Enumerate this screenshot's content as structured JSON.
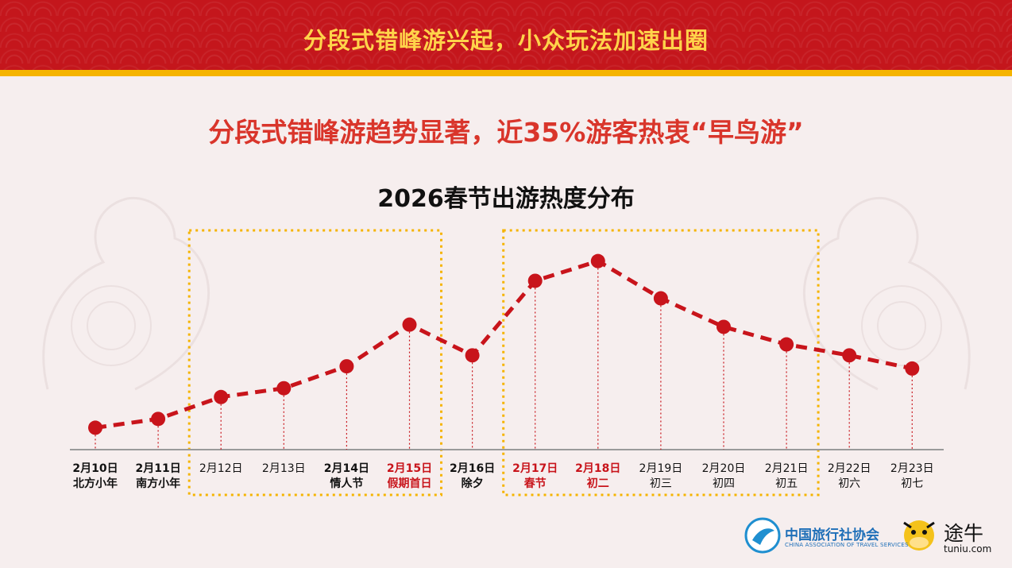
{
  "header": {
    "title": "分段式错峰游兴起，小众玩法加速出圈"
  },
  "subtitle": "分段式错峰游趋势显著，近35%游客热衷“早鸟游”",
  "chart_data": {
    "type": "line",
    "title": "2026春节出游热度分布",
    "categories": [
      "2月10日",
      "2月11日",
      "2月12日",
      "2月13日",
      "2月14日",
      "2月15日",
      "2月16日",
      "2月17日",
      "2月18日",
      "2月19日",
      "2月20日",
      "2月21日",
      "2月22日",
      "2月23日"
    ],
    "sublabels": [
      "北方小年",
      "南方小年",
      "",
      "",
      "情人节",
      "假期首日",
      "除夕",
      "春节",
      "初二",
      "初三",
      "初四",
      "初五",
      "初六",
      "初七"
    ],
    "highlighted": [
      false,
      false,
      false,
      false,
      false,
      true,
      false,
      true,
      true,
      false,
      false,
      false,
      false,
      false
    ],
    "bold": [
      true,
      true,
      false,
      false,
      true,
      true,
      true,
      true,
      true,
      false,
      false,
      false,
      false,
      false
    ],
    "values": [
      10,
      14,
      24,
      28,
      38,
      57,
      43,
      77,
      86,
      69,
      56,
      48,
      43,
      37
    ],
    "ylim": [
      0,
      100
    ],
    "grid": false,
    "highlight_boxes": [
      {
        "from": "2月12日",
        "to": "2月15日"
      },
      {
        "from": "2月17日",
        "to": "2月21日"
      }
    ],
    "colors": {
      "line": "#c8141b",
      "dot": "#c8141b",
      "box": "#f5b400",
      "highlight_label": "#c8141b",
      "label": "#111111",
      "baseline": "#9a9a9a"
    }
  },
  "logos": {
    "cats_name": "中国旅行社协会",
    "cats_en": "CHINA ASSOCIATION OF TRAVEL SERVICES",
    "tuniu_name": "途牛",
    "tuniu_en": "tuniu.com"
  }
}
